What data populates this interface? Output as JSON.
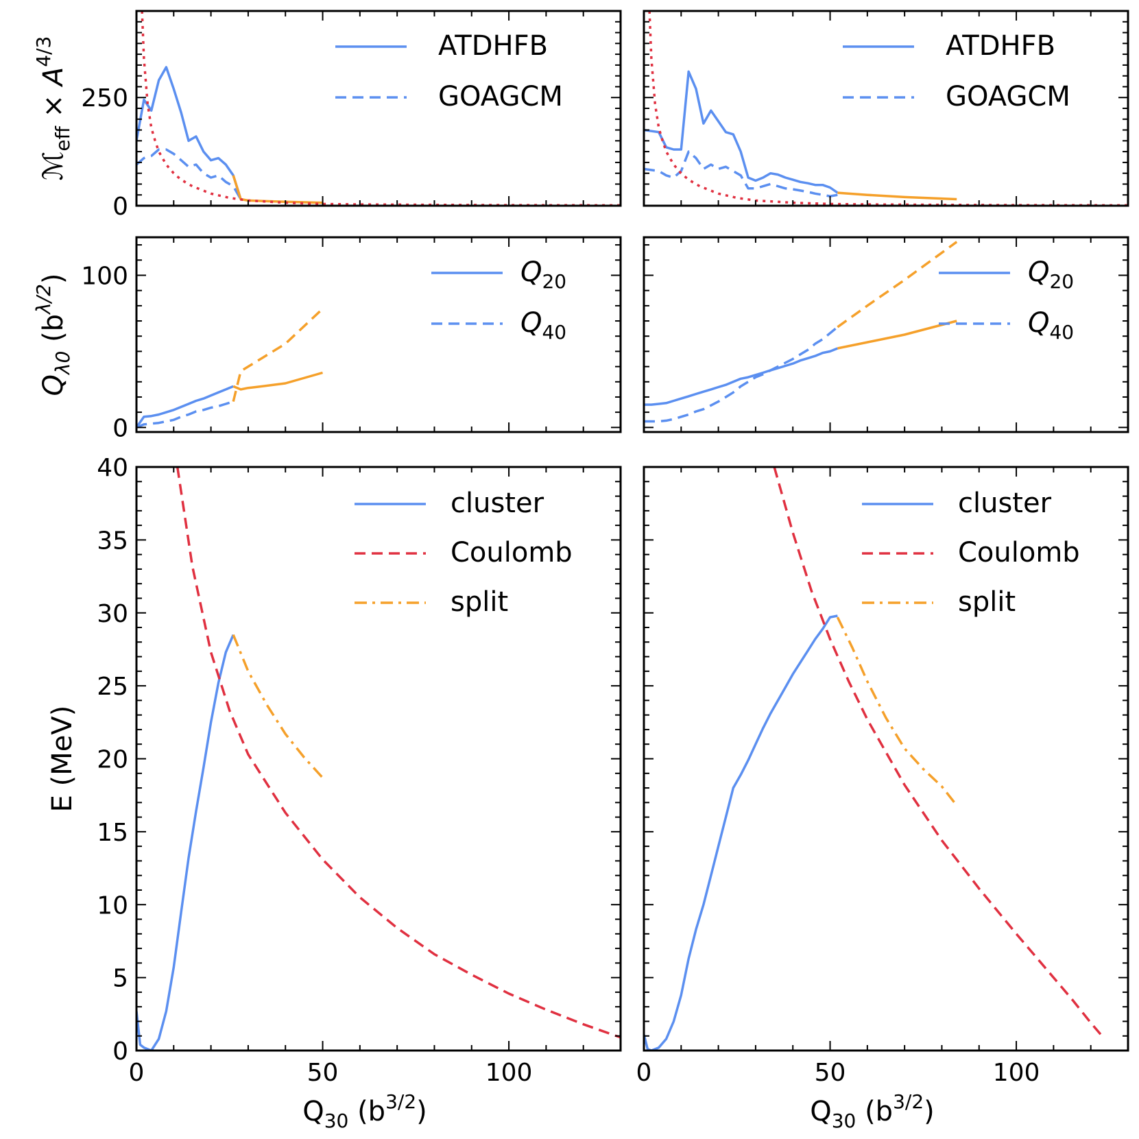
{
  "chart_data": [
    {
      "type": "line",
      "ylabel": "ℳeff × A4/3",
      "xlim": [
        0,
        130
      ],
      "ylim": [
        0,
        450
      ],
      "yticks": [
        0,
        250
      ],
      "yticklabels": [
        "0",
        "250"
      ],
      "show_xticklabels": false,
      "legend": [
        "ATDHFB",
        "GOAGCM"
      ],
      "series": [
        {
          "name": "ATDHFB",
          "color": "#5b8ff0",
          "dash": "solid",
          "x": [
            0,
            2,
            4,
            6,
            8,
            10,
            12,
            14,
            16,
            18,
            20,
            22,
            24,
            26,
            28
          ],
          "y": [
            150,
            245,
            220,
            290,
            320,
            270,
            215,
            150,
            160,
            125,
            105,
            110,
            95,
            70,
            15
          ]
        },
        {
          "name": "GOAGCM",
          "color": "#5b8ff0",
          "dash": "dashed",
          "x": [
            0,
            2,
            4,
            6,
            8,
            10,
            12,
            14,
            16,
            18,
            20,
            22,
            24,
            26,
            28
          ],
          "y": [
            95,
            110,
            115,
            130,
            130,
            120,
            105,
            90,
            95,
            75,
            65,
            70,
            55,
            45,
            15
          ]
        },
        {
          "name": "",
          "color": "#f5a02a",
          "dash": "solid",
          "x": [
            26,
            28,
            30,
            40,
            50
          ],
          "y": [
            70,
            15,
            12,
            9,
            7
          ]
        },
        {
          "name": "",
          "color": "#e03040",
          "dash": "dotted",
          "x": [
            1.5,
            2,
            3,
            4,
            5,
            6,
            8,
            10,
            12,
            15,
            20,
            25,
            30,
            40,
            50,
            60,
            80,
            100,
            130
          ],
          "y": [
            450,
            340,
            235,
            180,
            150,
            125,
            95,
            75,
            60,
            45,
            28,
            18,
            12,
            7,
            4,
            3,
            2,
            1.5,
            1
          ]
        }
      ]
    },
    {
      "type": "line",
      "xlim": [
        0,
        130
      ],
      "ylim": [
        0,
        450
      ],
      "yticks": [
        0,
        250
      ],
      "yticklabels": [],
      "show_xticklabels": false,
      "legend": [
        "ATDHFB",
        "GOAGCM"
      ],
      "series": [
        {
          "name": "ATDHFB",
          "color": "#5b8ff0",
          "dash": "solid",
          "x": [
            0,
            4,
            6,
            8,
            10,
            12,
            14,
            16,
            18,
            20,
            22,
            24,
            26,
            28,
            30,
            32,
            34,
            36,
            38,
            40,
            42,
            44,
            46,
            48,
            50,
            52
          ],
          "y": [
            175,
            170,
            135,
            130,
            130,
            310,
            270,
            190,
            220,
            195,
            170,
            165,
            125,
            65,
            58,
            65,
            75,
            72,
            65,
            60,
            55,
            52,
            48,
            48,
            42,
            30
          ]
        },
        {
          "name": "GOAGCM",
          "color": "#5b8ff0",
          "dash": "dashed",
          "x": [
            0,
            4,
            6,
            8,
            10,
            12,
            14,
            16,
            18,
            20,
            22,
            24,
            26,
            28,
            30,
            32,
            34,
            36,
            38,
            40,
            42,
            44,
            46,
            48,
            50,
            52
          ],
          "y": [
            85,
            80,
            70,
            65,
            80,
            125,
            110,
            85,
            95,
            85,
            90,
            80,
            70,
            40,
            40,
            45,
            50,
            45,
            40,
            38,
            35,
            32,
            28,
            25,
            22,
            25
          ]
        },
        {
          "name": "",
          "color": "#f5a02a",
          "dash": "solid",
          "x": [
            52,
            60,
            70,
            84
          ],
          "y": [
            30,
            25,
            20,
            15
          ]
        },
        {
          "name": "",
          "color": "#e03040",
          "dash": "dotted",
          "x": [
            1.5,
            2,
            3,
            4,
            5,
            6,
            8,
            10,
            12,
            15,
            20,
            25,
            30,
            40,
            50,
            60,
            80,
            100,
            130
          ],
          "y": [
            450,
            340,
            235,
            180,
            150,
            125,
            95,
            75,
            60,
            45,
            28,
            18,
            12,
            7,
            4,
            3,
            2,
            1.5,
            1
          ]
        }
      ]
    },
    {
      "type": "line",
      "ylabel": "Qλ0 (bλ/2)",
      "xlim": [
        0,
        130
      ],
      "ylim": [
        -3,
        125
      ],
      "yticks": [
        0,
        100
      ],
      "yticklabels": [
        "0",
        "100"
      ],
      "show_xticklabels": false,
      "legend": [
        "Q20",
        "Q40"
      ],
      "series": [
        {
          "name": "Q20",
          "color": "#5b8ff0",
          "dash": "solid",
          "x": [
            0,
            2,
            4,
            6,
            8,
            10,
            12,
            14,
            16,
            18,
            20,
            22,
            24,
            26
          ],
          "y": [
            0,
            7,
            7.5,
            8.5,
            10,
            11.5,
            13.5,
            15.5,
            17.5,
            19,
            21,
            23,
            25,
            27
          ]
        },
        {
          "name": "Q40",
          "color": "#5b8ff0",
          "dash": "dashed",
          "x": [
            0,
            2,
            4,
            6,
            8,
            10,
            12,
            14,
            16,
            18,
            20,
            22,
            24,
            26
          ],
          "y": [
            0,
            2,
            2.5,
            3,
            4,
            5,
            7,
            8.5,
            10.5,
            11.5,
            13,
            14,
            15.5,
            17
          ]
        },
        {
          "name": "",
          "color": "#f5a02a",
          "dash": "solid",
          "x": [
            26,
            28,
            30,
            32,
            40,
            50
          ],
          "y": [
            27,
            25,
            26,
            26.5,
            29,
            36
          ]
        },
        {
          "name": "",
          "color": "#f5a02a",
          "dash": "dashed",
          "x": [
            26,
            28,
            30,
            40,
            50
          ],
          "y": [
            17,
            37,
            40,
            55,
            78
          ]
        }
      ]
    },
    {
      "type": "line",
      "xlim": [
        0,
        130
      ],
      "ylim": [
        -3,
        125
      ],
      "yticks": [
        0,
        100
      ],
      "yticklabels": [],
      "show_xticklabels": false,
      "legend": [
        "Q20",
        "Q40"
      ],
      "series": [
        {
          "name": "Q20",
          "color": "#5b8ff0",
          "dash": "solid",
          "x": [
            0,
            2,
            4,
            6,
            8,
            10,
            12,
            14,
            16,
            18,
            20,
            22,
            24,
            26,
            28,
            30,
            32,
            34,
            36,
            38,
            40,
            42,
            44,
            46,
            48,
            50,
            52
          ],
          "y": [
            15,
            15,
            15.5,
            16,
            17.5,
            19,
            20.5,
            22,
            23.5,
            25,
            26.5,
            28,
            30,
            32,
            33,
            34.5,
            36,
            37.5,
            39,
            40.5,
            42,
            44,
            45.5,
            47,
            49,
            50,
            52
          ]
        },
        {
          "name": "Q40",
          "color": "#5b8ff0",
          "dash": "dashed",
          "x": [
            0,
            2,
            4,
            6,
            8,
            10,
            12,
            14,
            16,
            18,
            20,
            22,
            24,
            26,
            28,
            30,
            32,
            34,
            36,
            38,
            40,
            42,
            44,
            46,
            48,
            50,
            52
          ],
          "y": [
            4,
            4,
            4,
            4.5,
            5.5,
            7,
            8.5,
            10.5,
            12,
            14.5,
            17,
            20,
            23,
            27,
            30,
            33,
            35,
            37.5,
            40,
            42.5,
            45,
            48,
            51,
            55,
            58,
            62,
            66
          ]
        },
        {
          "name": "",
          "color": "#f5a02a",
          "dash": "solid",
          "x": [
            52,
            60,
            70,
            84
          ],
          "y": [
            52,
            56,
            61,
            70
          ]
        },
        {
          "name": "",
          "color": "#f5a02a",
          "dash": "dashed",
          "x": [
            52,
            60,
            70,
            84
          ],
          "y": [
            66,
            80,
            97,
            122
          ]
        }
      ]
    },
    {
      "type": "line",
      "ylabel": "E (MeV)",
      "xlabel": "Q30 (b3/2)",
      "xlim": [
        0,
        130
      ],
      "ylim": [
        0,
        40
      ],
      "xticks": [
        0,
        50,
        100
      ],
      "xticklabels": [
        "0",
        "50",
        "100"
      ],
      "yticks": [
        0,
        5,
        10,
        15,
        20,
        25,
        30,
        35,
        40
      ],
      "yticklabels": [
        "0",
        "5",
        "10",
        "15",
        "20",
        "25",
        "30",
        "35",
        "40"
      ],
      "show_xticklabels": true,
      "legend": [
        "cluster",
        "Coulomb",
        "split"
      ],
      "series": [
        {
          "name": "cluster",
          "color": "#5b8ff0",
          "dash": "solid",
          "x": [
            0,
            1,
            2,
            4,
            6,
            8,
            10,
            12,
            14,
            16,
            18,
            20,
            22,
            24,
            26
          ],
          "y": [
            2.7,
            0.4,
            0.2,
            0,
            0.8,
            2.7,
            5.7,
            9.5,
            13.2,
            16.4,
            19.4,
            22.5,
            25.2,
            27.3,
            28.5
          ]
        },
        {
          "name": "Coulomb",
          "color": "#e03040",
          "dash": "dashed",
          "x": [
            11,
            15,
            20,
            25,
            30,
            40,
            50,
            60,
            70,
            80,
            90,
            100,
            110,
            120,
            130
          ],
          "y": [
            40,
            33.2,
            27.3,
            23.3,
            20.3,
            16.3,
            13.1,
            10.5,
            8.4,
            6.6,
            5.2,
            3.9,
            2.8,
            1.8,
            0.9
          ]
        },
        {
          "name": "split",
          "color": "#f5a02a",
          "dash": "dashdot",
          "x": [
            26,
            30,
            35,
            40,
            45,
            50
          ],
          "y": [
            28.5,
            26,
            23.7,
            21.7,
            20.1,
            18.7
          ]
        }
      ]
    },
    {
      "type": "line",
      "xlabel": "Q30 (b3/2)",
      "xlim": [
        0,
        130
      ],
      "ylim": [
        0,
        40
      ],
      "xticks": [
        0,
        50,
        100
      ],
      "xticklabels": [
        "0",
        "50",
        "100"
      ],
      "yticks": [
        0,
        5,
        10,
        15,
        20,
        25,
        30,
        35,
        40
      ],
      "yticklabels": [],
      "show_xticklabels": true,
      "legend": [
        "cluster",
        "Coulomb",
        "split"
      ],
      "series": [
        {
          "name": "cluster",
          "color": "#5b8ff0",
          "dash": "solid",
          "x": [
            0,
            1,
            2,
            4,
            6,
            8,
            10,
            12,
            14,
            16,
            18,
            20,
            22,
            24,
            26,
            28,
            30,
            32,
            34,
            36,
            38,
            40,
            42,
            44,
            46,
            48,
            50,
            52
          ],
          "y": [
            1.1,
            0.1,
            0,
            0.2,
            0.8,
            2.0,
            3.8,
            6.3,
            8.3,
            10.0,
            12.0,
            14.0,
            16.0,
            18.0,
            18.9,
            19.9,
            21.0,
            22.1,
            23.1,
            24.0,
            24.9,
            25.8,
            26.6,
            27.4,
            28.2,
            28.9,
            29.7,
            29.8
          ]
        },
        {
          "name": "Coulomb",
          "color": "#e03040",
          "dash": "dashed",
          "x": [
            35,
            40,
            45,
            50,
            55,
            60,
            70,
            80,
            90,
            100,
            110,
            115,
            120,
            123
          ],
          "y": [
            40,
            35.5,
            31.5,
            28.2,
            25.3,
            22.7,
            18.2,
            14.4,
            11.1,
            8.0,
            5.0,
            3.5,
            1.9,
            1.0
          ]
        },
        {
          "name": "split",
          "color": "#f5a02a",
          "dash": "dashdot",
          "x": [
            52,
            56,
            60,
            65,
            70,
            75,
            80,
            84
          ],
          "y": [
            29.7,
            27.6,
            25.3,
            22.8,
            20.7,
            19.3,
            18.1,
            16.8
          ]
        }
      ]
    }
  ]
}
